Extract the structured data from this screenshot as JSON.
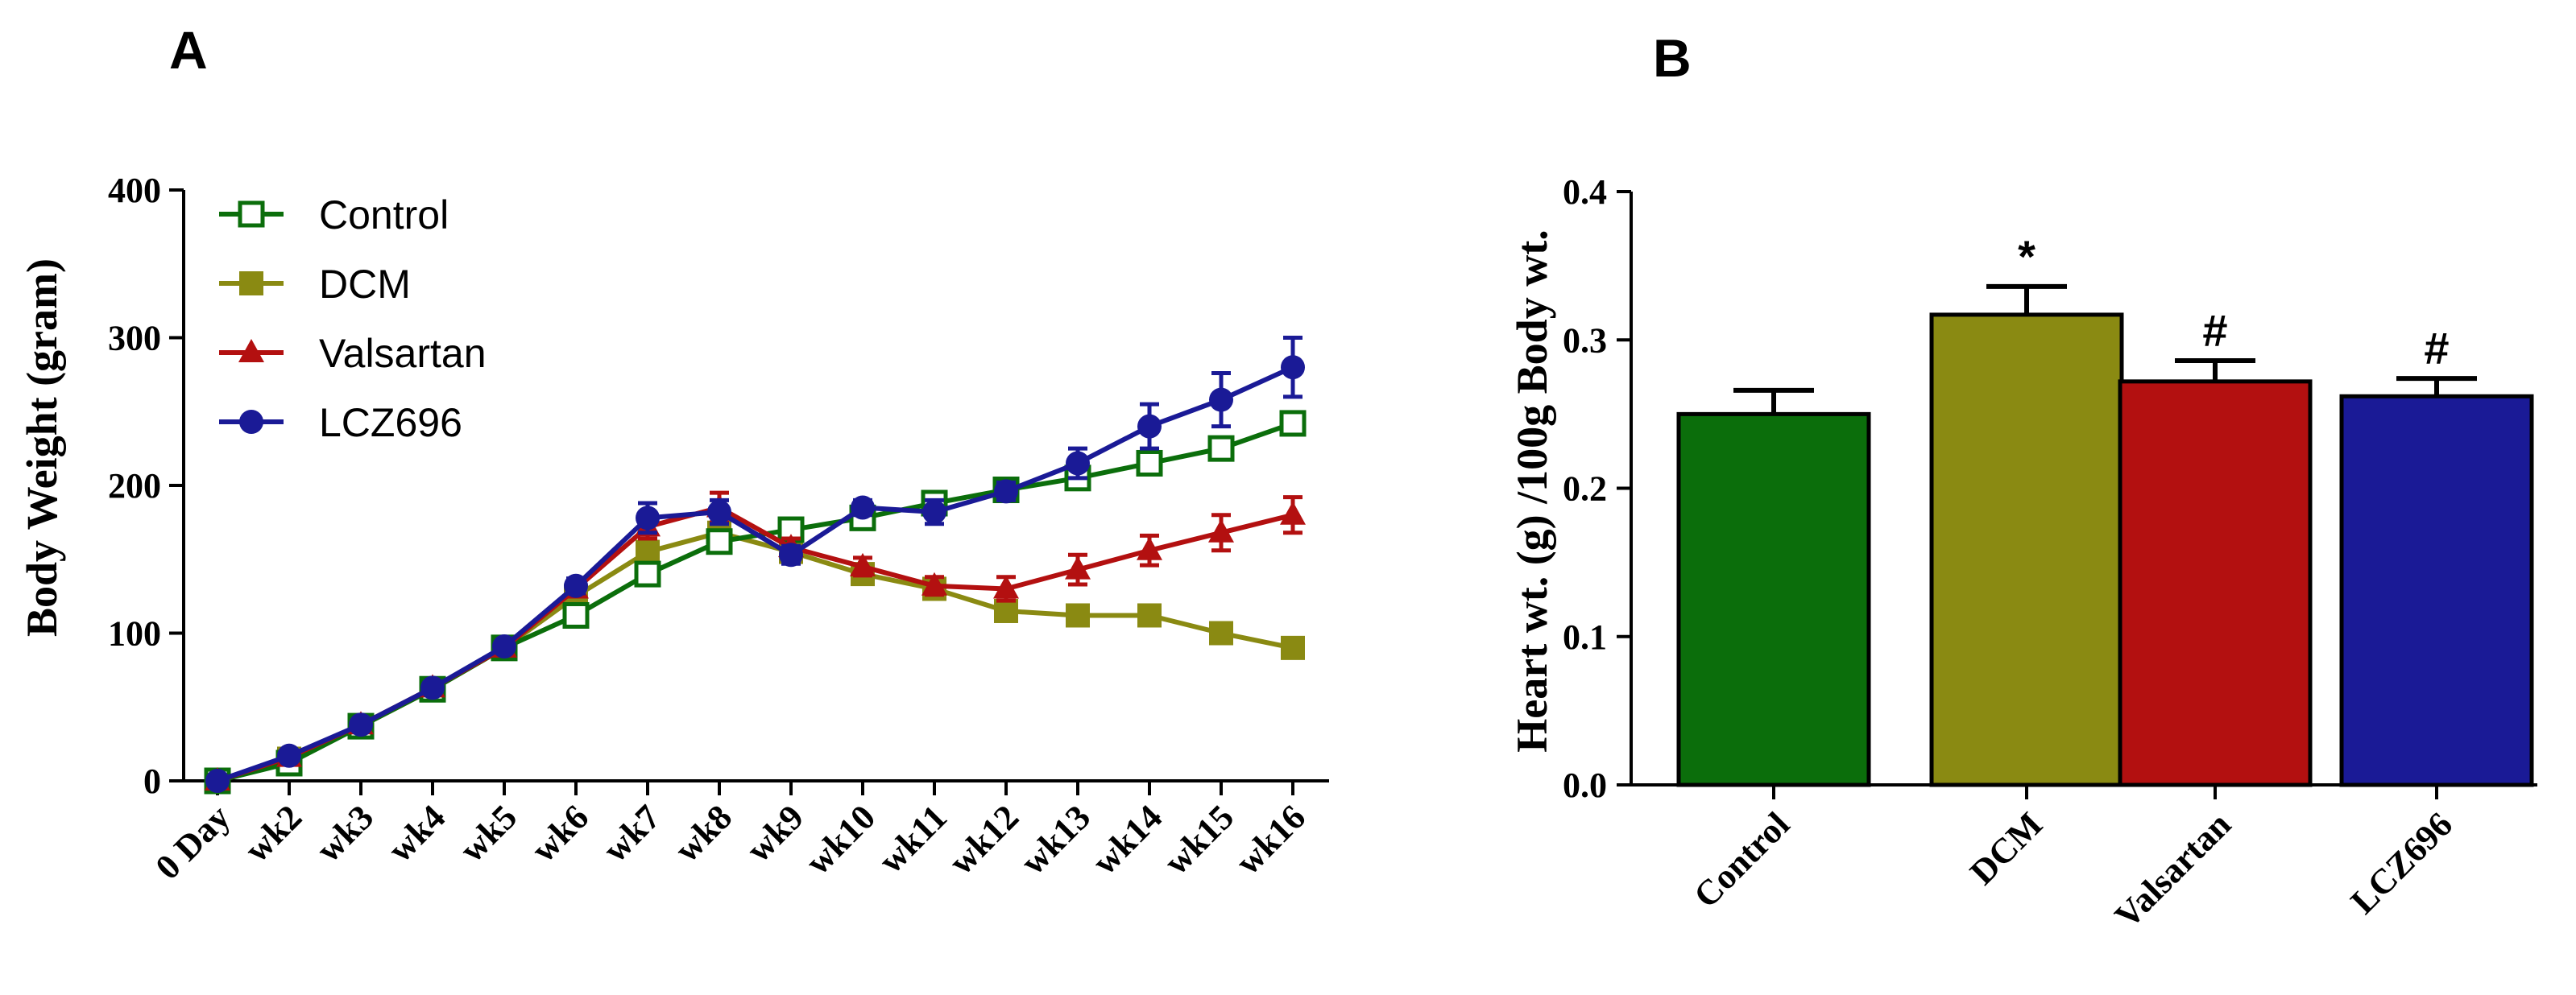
{
  "colors": {
    "control": "#0b6e0b",
    "dcm": "#8a8a12",
    "valsartan": "#b31010",
    "lcz696": "#1a1a96",
    "axis": "#000000"
  },
  "chart_data": [
    {
      "panel": "A",
      "type": "line",
      "title": "",
      "xlabel": "",
      "ylabel": "Body Weight (gram)",
      "ylim": [
        0,
        400
      ],
      "yticks": [
        "0",
        "100",
        "200",
        "300",
        "400"
      ],
      "categories": [
        "0 Day",
        "wk2",
        "wk3",
        "wk4",
        "wk5",
        "wk6",
        "wk7",
        "wk8",
        "wk9",
        "wk10",
        "wk11",
        "wk12",
        "wk13",
        "wk14",
        "wk15",
        "wk16"
      ],
      "legend_position": "top-left",
      "series": [
        {
          "name": "Control",
          "color_key": "control",
          "marker": "open-square",
          "values": [
            0,
            12,
            37,
            62,
            90,
            112,
            140,
            162,
            170,
            178,
            188,
            197,
            205,
            215,
            225,
            242
          ],
          "errors": [
            1,
            2,
            2,
            3,
            3,
            4,
            5,
            5,
            5,
            5,
            5,
            5,
            5,
            6,
            6,
            7
          ]
        },
        {
          "name": "DCM",
          "color_key": "dcm",
          "marker": "filled-square",
          "values": [
            0,
            15,
            37,
            62,
            90,
            125,
            155,
            168,
            155,
            140,
            130,
            115,
            112,
            112,
            100,
            90
          ],
          "errors": [
            1,
            2,
            2,
            3,
            3,
            4,
            5,
            5,
            5,
            5,
            5,
            5,
            5,
            5,
            5,
            5
          ]
        },
        {
          "name": "Valsartan",
          "color_key": "valsartan",
          "marker": "triangle",
          "values": [
            0,
            16,
            38,
            63,
            90,
            130,
            172,
            185,
            158,
            145,
            132,
            130,
            143,
            156,
            168,
            180
          ],
          "errors": [
            1,
            2,
            2,
            3,
            3,
            5,
            8,
            10,
            6,
            6,
            6,
            8,
            10,
            10,
            12,
            12
          ]
        },
        {
          "name": "LCZ696",
          "color_key": "lcz696",
          "marker": "circle",
          "values": [
            0,
            17,
            38,
            63,
            91,
            132,
            178,
            182,
            153,
            185,
            182,
            196,
            215,
            240,
            258,
            280
          ],
          "errors": [
            1,
            2,
            2,
            3,
            3,
            5,
            10,
            8,
            6,
            5,
            8,
            6,
            10,
            15,
            18,
            20
          ]
        }
      ]
    },
    {
      "panel": "B",
      "type": "bar",
      "title": "",
      "xlabel": "",
      "ylabel": "Heart wt. (g) /100g Body wt.",
      "ylim": [
        0,
        0.4
      ],
      "yticks": [
        "0.0",
        "0.1",
        "0.2",
        "0.3",
        "0.4"
      ],
      "categories": [
        "Control",
        "DCM",
        "Valsartan",
        "LCZ696"
      ],
      "values": [
        0.25,
        0.317,
        0.272,
        0.262
      ],
      "errors": [
        0.016,
        0.019,
        0.014,
        0.012
      ],
      "annotations": [
        "",
        "*",
        "#",
        "#"
      ],
      "color_keys": [
        "control",
        "dcm",
        "valsartan",
        "lcz696"
      ]
    }
  ]
}
